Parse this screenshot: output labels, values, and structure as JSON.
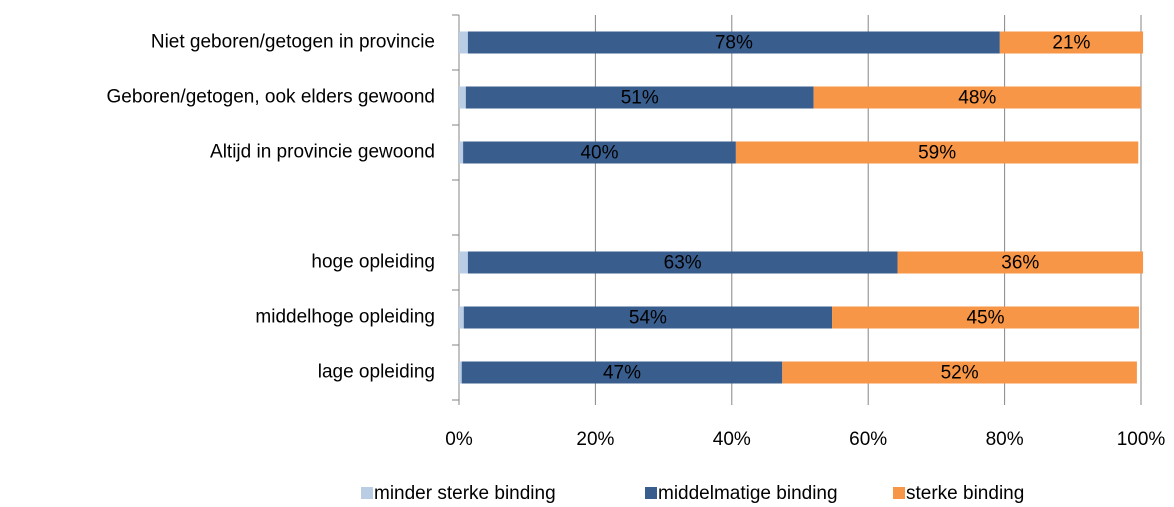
{
  "chart_data": {
    "type": "bar",
    "orientation": "horizontal",
    "stacked": true,
    "categories": [
      "Niet geboren/getogen in provincie",
      "Geboren/getogen, ook elders gewoond",
      "Altijd in provincie gewoond",
      null,
      "hoge opleiding",
      "middelhoge opleiding",
      "lage opleiding"
    ],
    "series": [
      {
        "name": "minder sterke binding",
        "color": "#b9cde5",
        "values": [
          1.3,
          1,
          0.6,
          null,
          1.3,
          0.7,
          0.4
        ]
      },
      {
        "name": "middelmatige binding",
        "color": "#395e8e",
        "values": [
          78,
          51,
          40,
          null,
          63,
          54,
          47
        ],
        "value_labels": [
          "78%",
          "51%",
          "40%",
          null,
          "63%",
          "54%",
          "47%"
        ]
      },
      {
        "name": "sterke binding",
        "color": "#f79646",
        "values": [
          21,
          48,
          59,
          null,
          36,
          45,
          52
        ],
        "value_labels": [
          "21%",
          "48%",
          "59%",
          null,
          "36%",
          "45%",
          "52%"
        ]
      }
    ],
    "xlim": [
      0,
      100
    ],
    "xticks": [
      {
        "value": 0,
        "label": "0%"
      },
      {
        "value": 20,
        "label": "20%"
      },
      {
        "value": 40,
        "label": "40%"
      },
      {
        "value": 60,
        "label": "60%"
      },
      {
        "value": 80,
        "label": "80%"
      },
      {
        "value": 100,
        "label": "100%"
      }
    ],
    "grid": true,
    "legend": "bottom"
  }
}
